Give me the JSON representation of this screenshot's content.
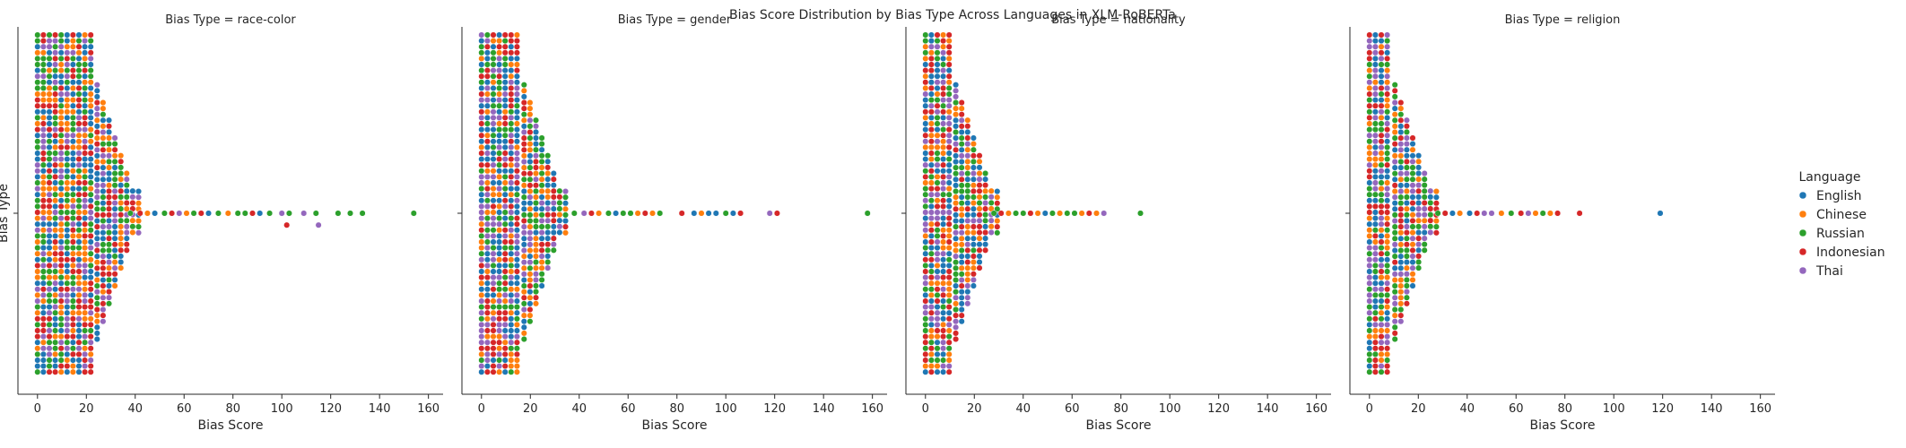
{
  "chart_data": {
    "type": "scatter",
    "title": "Bias Score Distribution by Bias Type Across Languages in XLM-RoBERTa",
    "ylabel": "Bias Type",
    "xlabel": "Bias Score",
    "xlim": [
      -8,
      166
    ],
    "xticks": [
      0,
      20,
      40,
      60,
      80,
      100,
      120,
      140,
      160
    ],
    "grid": false,
    "legend": {
      "title": "Language",
      "placement": "right",
      "entries": [
        {
          "name": "English",
          "color": "#1f77b4"
        },
        {
          "name": "Chinese",
          "color": "#ff7f0e"
        },
        {
          "name": "Russian",
          "color": "#2ca02c"
        },
        {
          "name": "Indonesian",
          "color": "#d62728"
        },
        {
          "name": "Thai",
          "color": "#9467bd"
        }
      ]
    },
    "facets": [
      {
        "title": "Bias Type = race-color",
        "core_max": 22,
        "tail": [
          {
            "x": 38,
            "lang": "Russian"
          },
          {
            "x": 42,
            "lang": "Indonesian"
          },
          {
            "x": 45,
            "lang": "Chinese"
          },
          {
            "x": 48,
            "lang": "English"
          },
          {
            "x": 52,
            "lang": "Russian"
          },
          {
            "x": 55,
            "lang": "Indonesian"
          },
          {
            "x": 58,
            "lang": "Thai"
          },
          {
            "x": 61,
            "lang": "Chinese"
          },
          {
            "x": 64,
            "lang": "Russian"
          },
          {
            "x": 67,
            "lang": "Indonesian"
          },
          {
            "x": 70,
            "lang": "English"
          },
          {
            "x": 74,
            "lang": "Russian"
          },
          {
            "x": 78,
            "lang": "Chinese"
          },
          {
            "x": 82,
            "lang": "Russian"
          },
          {
            "x": 85,
            "lang": "Russian"
          },
          {
            "x": 88,
            "lang": "Indonesian"
          },
          {
            "x": 91,
            "lang": "English"
          },
          {
            "x": 95,
            "lang": "Russian"
          },
          {
            "x": 100,
            "lang": "Thai"
          },
          {
            "x": 102,
            "lang": "Indonesian"
          },
          {
            "x": 103,
            "lang": "Russian"
          },
          {
            "x": 109,
            "lang": "Thai"
          },
          {
            "x": 114,
            "lang": "Russian"
          },
          {
            "x": 115,
            "lang": "Thai"
          },
          {
            "x": 123,
            "lang": "Russian"
          },
          {
            "x": 128,
            "lang": "Russian"
          },
          {
            "x": 133,
            "lang": "Russian"
          },
          {
            "x": 154,
            "lang": "Russian"
          }
        ]
      },
      {
        "title": "Bias Type = gender",
        "core_max": 15,
        "tail": [
          {
            "x": 38,
            "lang": "Russian"
          },
          {
            "x": 42,
            "lang": "Thai"
          },
          {
            "x": 45,
            "lang": "Indonesian"
          },
          {
            "x": 48,
            "lang": "Chinese"
          },
          {
            "x": 52,
            "lang": "Russian"
          },
          {
            "x": 55,
            "lang": "English"
          },
          {
            "x": 58,
            "lang": "Russian"
          },
          {
            "x": 61,
            "lang": "Russian"
          },
          {
            "x": 64,
            "lang": "Chinese"
          },
          {
            "x": 67,
            "lang": "Indonesian"
          },
          {
            "x": 70,
            "lang": "Chinese"
          },
          {
            "x": 73,
            "lang": "Russian"
          },
          {
            "x": 82,
            "lang": "Indonesian"
          },
          {
            "x": 87,
            "lang": "English"
          },
          {
            "x": 90,
            "lang": "Chinese"
          },
          {
            "x": 93,
            "lang": "English"
          },
          {
            "x": 96,
            "lang": "English"
          },
          {
            "x": 100,
            "lang": "Russian"
          },
          {
            "x": 103,
            "lang": "English"
          },
          {
            "x": 106,
            "lang": "Indonesian"
          },
          {
            "x": 118,
            "lang": "Thai"
          },
          {
            "x": 121,
            "lang": "Indonesian"
          },
          {
            "x": 158,
            "lang": "Russian"
          }
        ]
      },
      {
        "title": "Bias Type = nationality",
        "core_max": 10,
        "tail": [
          {
            "x": 28,
            "lang": "Russian"
          },
          {
            "x": 31,
            "lang": "Indonesian"
          },
          {
            "x": 34,
            "lang": "Chinese"
          },
          {
            "x": 37,
            "lang": "Russian"
          },
          {
            "x": 40,
            "lang": "Russian"
          },
          {
            "x": 43,
            "lang": "Indonesian"
          },
          {
            "x": 46,
            "lang": "Chinese"
          },
          {
            "x": 49,
            "lang": "English"
          },
          {
            "x": 52,
            "lang": "Russian"
          },
          {
            "x": 55,
            "lang": "Chinese"
          },
          {
            "x": 58,
            "lang": "Russian"
          },
          {
            "x": 61,
            "lang": "Russian"
          },
          {
            "x": 64,
            "lang": "Chinese"
          },
          {
            "x": 67,
            "lang": "Indonesian"
          },
          {
            "x": 70,
            "lang": "Chinese"
          },
          {
            "x": 73,
            "lang": "Thai"
          },
          {
            "x": 88,
            "lang": "Russian"
          }
        ]
      },
      {
        "title": "Bias Type = religion",
        "core_max": 8,
        "tail": [
          {
            "x": 28,
            "lang": "Russian"
          },
          {
            "x": 31,
            "lang": "Indonesian"
          },
          {
            "x": 34,
            "lang": "English"
          },
          {
            "x": 37,
            "lang": "Chinese"
          },
          {
            "x": 41,
            "lang": "English"
          },
          {
            "x": 44,
            "lang": "Indonesian"
          },
          {
            "x": 47,
            "lang": "Thai"
          },
          {
            "x": 50,
            "lang": "Thai"
          },
          {
            "x": 54,
            "lang": "Chinese"
          },
          {
            "x": 58,
            "lang": "Russian"
          },
          {
            "x": 62,
            "lang": "Indonesian"
          },
          {
            "x": 65,
            "lang": "Thai"
          },
          {
            "x": 68,
            "lang": "Chinese"
          },
          {
            "x": 71,
            "lang": "Russian"
          },
          {
            "x": 74,
            "lang": "Chinese"
          },
          {
            "x": 77,
            "lang": "Indonesian"
          },
          {
            "x": 86,
            "lang": "Indonesian"
          },
          {
            "x": 119,
            "lang": "English"
          }
        ]
      }
    ]
  }
}
